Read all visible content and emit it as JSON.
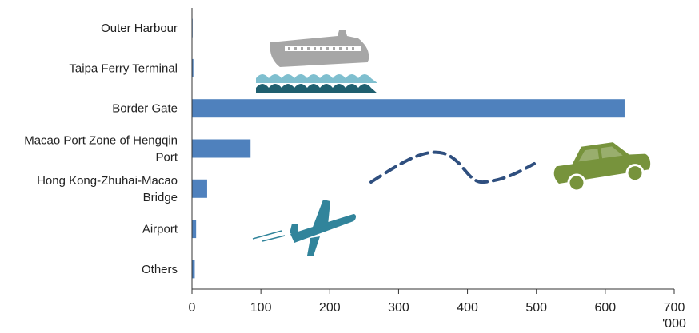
{
  "chart_data": {
    "type": "bar",
    "orientation": "horizontal",
    "categories": [
      [
        "Outer Harbour"
      ],
      [
        "Taipa Ferry Terminal"
      ],
      [
        "Border Gate"
      ],
      [
        "Macao Port Zone of Hengqin",
        "Port"
      ],
      [
        "Hong Kong-Zhuhai-Macao",
        "Bridge"
      ],
      [
        "Airport"
      ],
      [
        "Others"
      ]
    ],
    "values": [
      0,
      2,
      628,
      85,
      22,
      6,
      4
    ],
    "x_ticks": [
      "0",
      "100",
      "200",
      "300",
      "400",
      "500",
      "600",
      "700"
    ],
    "xlim": [
      0,
      700
    ],
    "x_unit": "'000",
    "grid": false,
    "bar_color": "#4f81bd",
    "illustrations": {
      "ferry_icon": "ferry-icon",
      "car_icon": "car-icon",
      "airplane_icon": "airplane-icon",
      "colors": {
        "ferry": "#a6a6a6",
        "wave_light": "#7fbfcf",
        "wave_dark": "#1f5f6f",
        "car": "#77933c",
        "plane": "#31849b",
        "path": "#2f4f7f"
      }
    }
  }
}
